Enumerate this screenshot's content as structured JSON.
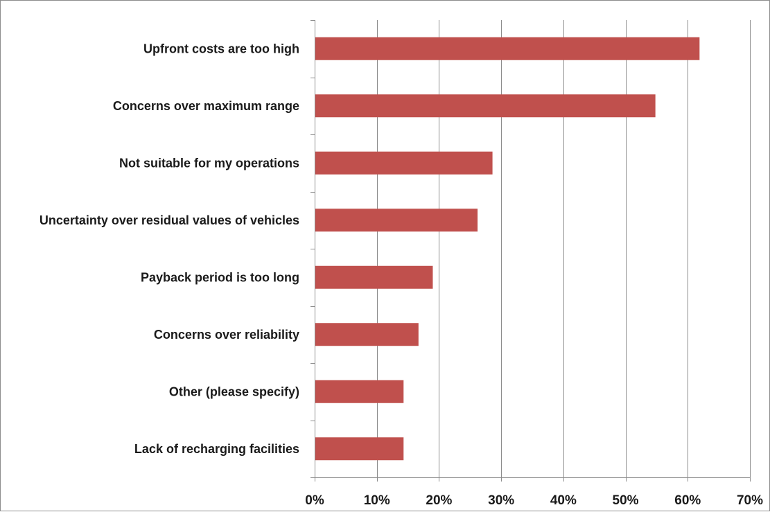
{
  "chart_data": {
    "type": "bar",
    "orientation": "horizontal",
    "title": "",
    "xlabel": "",
    "ylabel": "",
    "xlim": [
      0,
      70
    ],
    "x_ticks": [
      0,
      10,
      20,
      30,
      40,
      50,
      60,
      70
    ],
    "x_tick_labels": [
      "0%",
      "10%",
      "20%",
      "30%",
      "40%",
      "50%",
      "60%",
      "70%"
    ],
    "grid": "vertical major gridlines",
    "legend": "none",
    "bar_color": "#c0504d",
    "categories": [
      "Upfront costs are too high",
      "Concerns over maximum range",
      "Not suitable for my operations",
      "Uncertainty over residual values of vehicles",
      "Payback period is too long",
      "Concerns over reliability",
      "Other (please specify)",
      "Lack of recharging facilities"
    ],
    "values": [
      61.9,
      54.8,
      28.6,
      26.2,
      19.0,
      16.7,
      14.3,
      14.3
    ],
    "unit": "%"
  }
}
